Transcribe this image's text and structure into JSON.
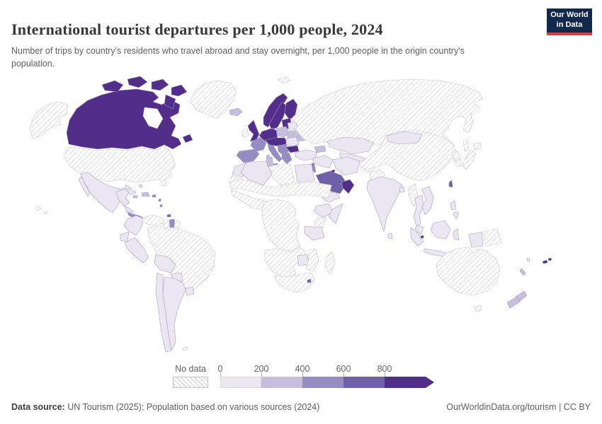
{
  "header": {
    "title": "International tourist departures per 1,000 people, 2024",
    "subtitle": "Number of trips by country's residents who travel abroad and stay overnight, per 1,000 people in the origin country's population.",
    "logo": {
      "line1": "Our World",
      "line2": "in Data",
      "bg": "#12294b",
      "accent": "#d93a46"
    }
  },
  "legend": {
    "no_data_label": "No data",
    "ticks": [
      "0",
      "200",
      "400",
      "600",
      "800"
    ],
    "hatch_color": "#d8d8d8"
  },
  "map": {
    "bin_colors": {
      "bin1": "#eae7f2",
      "bin2": "#c5bfdd",
      "bin3": "#958cc1",
      "bin4": "#6e61a9",
      "bin5": "#522d8a"
    },
    "region_bins": {
      "alaska": "nodata",
      "canada": "bin5",
      "greenland": "nodata",
      "usa": "nodata",
      "hawaii": "nodata",
      "mexico": "bin1",
      "cuba": "bin1",
      "bahamas": "bin1",
      "jamaica": "bin2",
      "hispaniola": "bin2",
      "puerto-rico": "bin3",
      "antilles": "bin3",
      "central-america": "bin1",
      "costa-rica-panama": "bin3",
      "trinidad": "bin4",
      "colombia": "bin1",
      "venezuela": "nodata",
      "guyana": "nodata",
      "suriname": "bin3",
      "french-guiana": "nodata",
      "brazil": "nodata",
      "ecuador": "bin1",
      "peru": "bin1",
      "bolivia": "bin1",
      "paraguay": "bin1",
      "uruguay": "bin1",
      "chile": "bin1",
      "argentina": "bin1",
      "falklands": "nodata",
      "iceland": "bin2",
      "ireland": "nodata",
      "uk": "bin5",
      "norway": "bin5",
      "sweden": "bin5",
      "finland": "bin5",
      "denmark": "bin5",
      "baltics": "bin5",
      "germany": "bin5",
      "poland": "bin2",
      "belarus": "bin1",
      "ukraine": "bin2",
      "france": "bin3",
      "iberia": "bin3",
      "italy": "bin3",
      "sardinia": "bin2",
      "central-europe": "bin5",
      "balkans": "bin3",
      "romania": "bin1",
      "bulgaria": "bin5",
      "greece": "bin3",
      "turkey": "bin1",
      "cyprus": "bin5",
      "svalbard": "nodata",
      "russia": "nodata",
      "kazakhstan": "bin1",
      "central-asia": "bin1",
      "caucasus": "bin2",
      "syria-iraq": "bin1",
      "iran": "bin1",
      "afghanistan": "nodata",
      "pakistan": "nodata",
      "israel-jordan": "bin3",
      "saudi-arabia": "bin4",
      "kuwait": "bin5",
      "qatar": "bin5",
      "oman-uae": "bin5",
      "yemen": "bin1",
      "morocco": "bin1",
      "western-sahara": "nodata",
      "algeria": "bin1",
      "tunisia": "bin2",
      "libya": "nodata",
      "egypt": "bin1",
      "sahel": "nodata",
      "west-africa": "nodata",
      "ethiopia": "bin1",
      "somalia": "bin1",
      "central-africa": "nodata",
      "kenya": "nodata",
      "tanzania": "bin1",
      "angola-zambia": "nodata",
      "zimbabwe": "bin1",
      "mozambique": "nodata",
      "south-africa": "nodata",
      "eswatini": "bin4",
      "madagascar": "nodata",
      "india": "bin1",
      "sri-lanka": "bin1",
      "bangladesh": "bin1",
      "myanmar": "nodata",
      "thailand": "bin1",
      "vietnam-laos": "bin1",
      "malaysia": "bin1",
      "singapore": "bin5",
      "sumatra": "bin1",
      "java": "bin1",
      "borneo": "bin1",
      "sulawesi": "bin1",
      "lesser-sunda": "bin1",
      "timor": "nodata",
      "philippines": "bin1",
      "west-papua": "bin1",
      "png": "nodata",
      "china": "nodata",
      "mongolia": "bin1",
      "north-korea": "nodata",
      "south-korea": "nodata",
      "japan": "nodata",
      "taiwan": "bin4",
      "australia": "nodata",
      "tasmania": "nodata",
      "new-zealand": "bin2",
      "fiji": "bin5",
      "new-caledonia": "bin2",
      "vanuatu": "bin1"
    }
  },
  "footer": {
    "source_label": "Data source:",
    "source_text": " UN Tourism (2025); Population based on various sources (2024)",
    "right_text": "OurWorldinData.org/tourism | CC BY"
  }
}
